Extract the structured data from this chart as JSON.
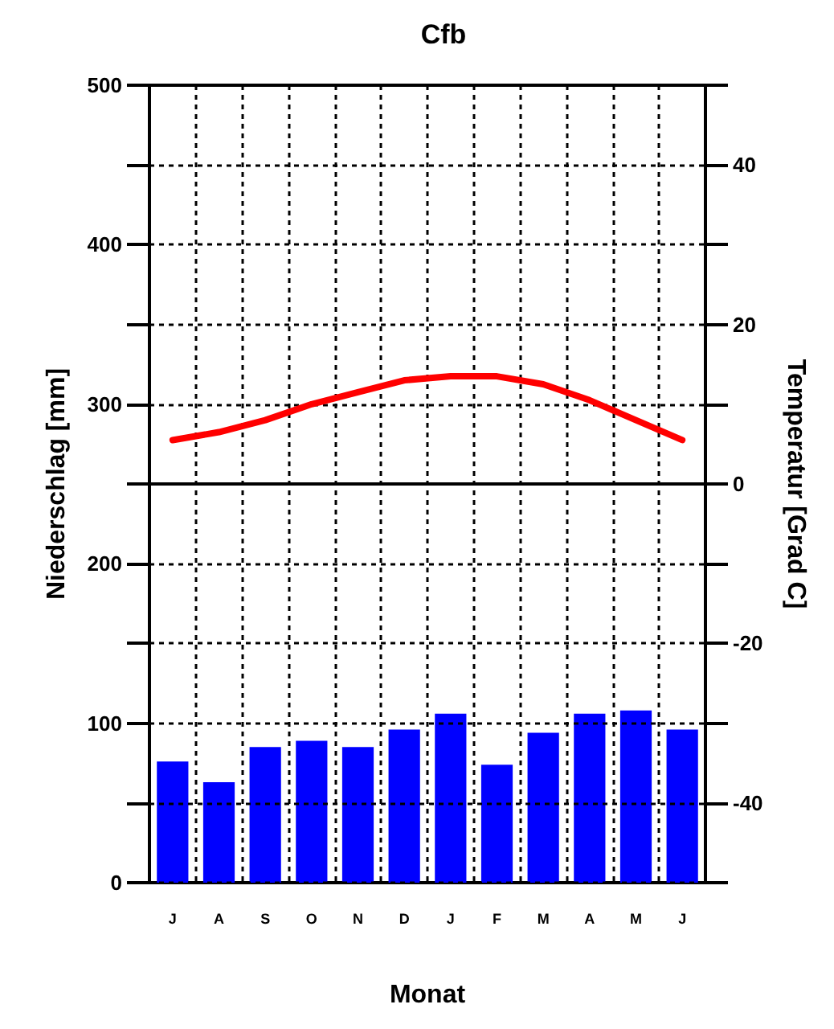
{
  "chart_data": {
    "type": "bar",
    "title": "Cfb",
    "xlabel": "Monat",
    "ylabel": "Niederschlag [mm]",
    "y2label": "Temperatur [Grad C]",
    "categories": [
      "J",
      "A",
      "S",
      "O",
      "N",
      "D",
      "J",
      "F",
      "M",
      "A",
      "M",
      "J"
    ],
    "series": [
      {
        "color": "#0000ff",
        "values": [
          76,
          63,
          85,
          89,
          85,
          96,
          106,
          74,
          94,
          106,
          108,
          96
        ]
      },
      {
        "type": "line",
        "axis": "y2",
        "color": "#ff0000",
        "values": [
          5.5,
          6.5,
          8,
          10,
          11.5,
          13,
          13.5,
          13.5,
          12.5,
          10.5,
          8,
          5.5
        ]
      }
    ],
    "ylim": [
      0,
      500
    ],
    "yticks": [
      0,
      {
        "value": 50,
        "label": null
      },
      100,
      {
        "value": 150,
        "label": null
      },
      200,
      {
        "value": 250,
        "label": null
      },
      300,
      {
        "value": 350,
        "label": null
      },
      400,
      {
        "value": 450,
        "label": null
      },
      500
    ],
    "y2lim": [
      -50,
      50
    ],
    "y2ticks": [
      {
        "value": -50,
        "label": null
      },
      -40,
      {
        "value": -30,
        "label": null
      },
      -20,
      {
        "value": -10,
        "label": null
      },
      0,
      {
        "value": 10,
        "label": null
      },
      20,
      {
        "value": 30,
        "label": null
      },
      40,
      {
        "value": 50,
        "label": null
      }
    ],
    "ref_lines": [
      {
        "axis": "y2",
        "value": 0,
        "color": "#000000",
        "line_style": "solid"
      }
    ],
    "grid": true,
    "marker": "none",
    "line_style": "solid"
  }
}
